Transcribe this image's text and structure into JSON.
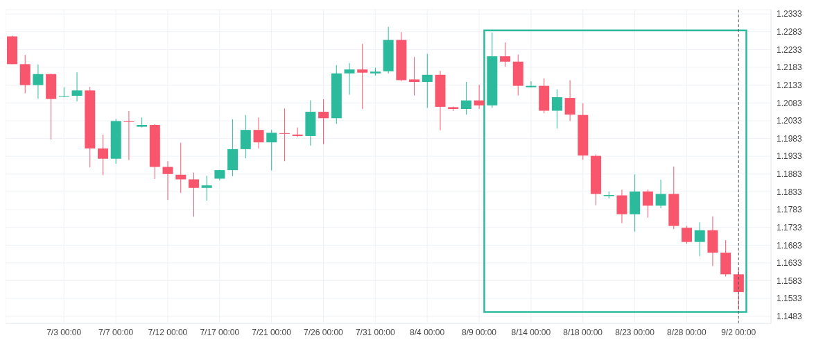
{
  "chart_data": {
    "type": "candlestick",
    "categories": [
      null,
      null,
      null,
      null,
      "7/3 00:00",
      null,
      null,
      null,
      "7/7 00:00",
      null,
      null,
      null,
      "7/12 00:00",
      null,
      null,
      null,
      "7/17 00:00",
      null,
      null,
      null,
      "7/21 00:00",
      null,
      null,
      null,
      "7/26 00:00",
      null,
      null,
      null,
      "7/31 00:00",
      null,
      null,
      null,
      "8/4 00:00",
      null,
      null,
      null,
      "8/9 00:00",
      null,
      null,
      null,
      "8/14 00:00",
      null,
      null,
      null,
      "8/18 00:00",
      null,
      null,
      null,
      "8/23 00:00",
      null,
      null,
      null,
      "8/28 00:00",
      null,
      null,
      null,
      "9/2 00:00"
    ],
    "ohlc": [
      [
        1.227,
        1.2272,
        1.2192,
        1.2192
      ],
      [
        1.2192,
        1.2218,
        1.211,
        1.2133
      ],
      [
        1.2133,
        1.2191,
        1.2095,
        1.2164
      ],
      [
        1.2164,
        1.2165,
        1.198,
        1.2094
      ],
      [
        1.2101,
        1.2127,
        1.2099,
        1.2102
      ],
      [
        1.2103,
        1.2169,
        1.2087,
        1.2118
      ],
      [
        1.2118,
        1.2128,
        1.1902,
        1.1955
      ],
      [
        1.1955,
        1.1994,
        1.188,
        1.1926
      ],
      [
        1.1926,
        1.2038,
        1.1912,
        1.2032
      ],
      [
        1.2031,
        1.206,
        1.1922,
        1.2029
      ],
      [
        1.2016,
        1.2042,
        1.2014,
        1.2021
      ],
      [
        1.2021,
        1.2023,
        1.1869,
        1.1903
      ],
      [
        1.1903,
        1.1919,
        1.181,
        1.1883
      ],
      [
        1.1881,
        1.1971,
        1.183,
        1.1868
      ],
      [
        1.1868,
        1.1887,
        1.1763,
        1.1844
      ],
      [
        1.1844,
        1.1878,
        1.1808,
        1.1851
      ],
      [
        1.187,
        1.1895,
        1.1865,
        1.1894
      ],
      [
        1.1894,
        1.2037,
        1.1877,
        1.1953
      ],
      [
        1.1953,
        1.2049,
        1.1927,
        1.2007
      ],
      [
        1.2007,
        1.2042,
        1.1955,
        1.1972
      ],
      [
        1.1972,
        1.2007,
        1.1893,
        1.1999
      ],
      [
        1.1998,
        1.2067,
        1.1919,
        1.1996
      ],
      [
        1.1994,
        1.2014,
        1.1987,
        1.199
      ],
      [
        1.199,
        1.209,
        1.1963,
        1.2058
      ],
      [
        1.2058,
        1.2093,
        1.1967,
        1.204
      ],
      [
        1.204,
        1.2189,
        1.2024,
        1.2166
      ],
      [
        1.2166,
        1.2195,
        1.2106,
        1.2177
      ],
      [
        1.2177,
        1.2249,
        1.2066,
        1.2168
      ],
      [
        1.2166,
        1.2182,
        1.216,
        1.2171
      ],
      [
        1.2172,
        1.2297,
        1.2166,
        1.226
      ],
      [
        1.226,
        1.2282,
        1.2144,
        1.2147
      ],
      [
        1.2149,
        1.2212,
        1.2104,
        1.2142
      ],
      [
        1.2142,
        1.2221,
        1.2069,
        1.2162
      ],
      [
        1.2162,
        1.2173,
        1.2006,
        1.2072
      ],
      [
        1.2071,
        1.2073,
        1.206,
        1.2066
      ],
      [
        1.2066,
        1.2142,
        1.205,
        1.209
      ],
      [
        1.209,
        1.2134,
        1.2066,
        1.2076
      ],
      [
        1.2076,
        1.2281,
        1.2069,
        1.2214
      ],
      [
        1.2214,
        1.2253,
        1.2185,
        1.2199
      ],
      [
        1.2199,
        1.2219,
        1.2104,
        1.2131
      ],
      [
        1.2127,
        1.2144,
        1.2126,
        1.2131
      ],
      [
        1.2131,
        1.2152,
        1.2054,
        1.2061
      ],
      [
        1.2061,
        1.2121,
        1.2011,
        1.2099
      ],
      [
        1.2097,
        1.2147,
        1.2032,
        1.205
      ],
      [
        1.2049,
        1.2082,
        1.1923,
        1.1935
      ],
      [
        1.1934,
        1.1938,
        1.1795,
        1.1827
      ],
      [
        1.1821,
        1.1834,
        1.1814,
        1.1824
      ],
      [
        1.1823,
        1.1839,
        1.1745,
        1.177
      ],
      [
        1.177,
        1.1882,
        1.1721,
        1.1834
      ],
      [
        1.1834,
        1.1839,
        1.176,
        1.1794
      ],
      [
        1.1794,
        1.1867,
        1.1787,
        1.1827
      ],
      [
        1.1827,
        1.1904,
        1.1728,
        1.1737
      ],
      [
        1.1732,
        1.1737,
        1.1687,
        1.1692
      ],
      [
        1.1692,
        1.1747,
        1.1652,
        1.1725
      ],
      [
        1.1725,
        1.1764,
        1.1624,
        1.1662
      ],
      [
        1.1662,
        1.1697,
        1.1595,
        1.1601
      ],
      [
        1.1601,
        1.1618,
        1.1501,
        1.1551
      ]
    ],
    "colors": [
      "#f7566c",
      "#f7566c",
      "#2bba9c",
      "#f7566c",
      "#2bba9c",
      "#2bba9c",
      "#f7566c",
      "#f7566c",
      "#2bba9c",
      "#f7566c",
      "#2bba9c",
      "#f7566c",
      "#f7566c",
      "#f7566c",
      "#f7566c",
      "#2bba9c",
      "#2bba9c",
      "#2bba9c",
      "#2bba9c",
      "#f7566c",
      "#2bba9c",
      "#f7566c",
      "#f7566c",
      "#2bba9c",
      "#f7566c",
      "#2bba9c",
      "#2bba9c",
      "#f7566c",
      "#2bba9c",
      "#2bba9c",
      "#f7566c",
      "#f7566c",
      "#2bba9c",
      "#f7566c",
      "#f7566c",
      "#2bba9c",
      "#f7566c",
      "#2bba9c",
      "#f7566c",
      "#f7566c",
      "#2bba9c",
      "#f7566c",
      "#2bba9c",
      "#f7566c",
      "#f7566c",
      "#f7566c",
      "#2bba9c",
      "#f7566c",
      "#2bba9c",
      "#f7566c",
      "#2bba9c",
      "#f7566c",
      "#f7566c",
      "#2bba9c",
      "#f7566c",
      "#f7566c",
      "#f7566c"
    ],
    "ylim": [
      1.1463,
      1.2345
    ],
    "yticks": [
      1.1483,
      1.1533,
      1.1583,
      1.1633,
      1.1683,
      1.1733,
      1.1783,
      1.1833,
      1.1883,
      1.1933,
      1.1983,
      1.2033,
      1.2083,
      1.2133,
      1.2183,
      1.2233,
      1.2283,
      1.2333
    ],
    "grid": true,
    "ref_lines": [
      {
        "axis": "x",
        "value": "9/2 00:00",
        "color": "#555555",
        "line_style": "dashed"
      }
    ]
  }
}
